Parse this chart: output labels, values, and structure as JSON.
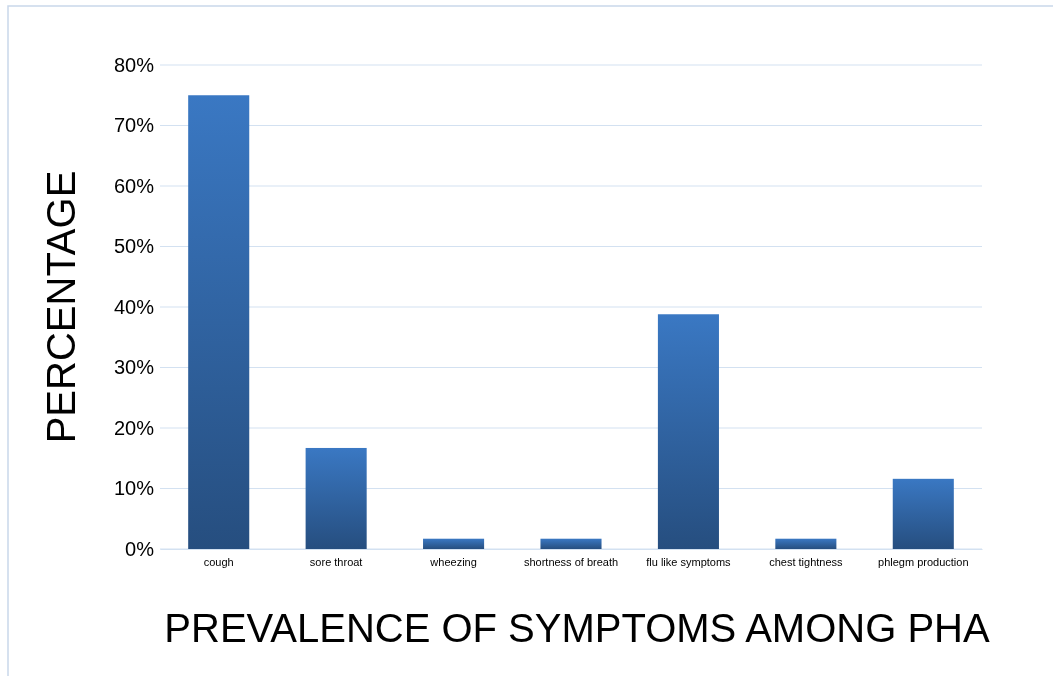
{
  "chart_data": {
    "type": "bar",
    "xlabel": "PREVALENCE OF SYMPTOMS AMONG PHA",
    "ylabel": "PERCENTAGE",
    "categories": [
      "cough",
      "sore throat",
      "wheezing",
      "shortness of breath",
      "flu like symptoms",
      "chest tightness",
      "phlegm production"
    ],
    "values": [
      75,
      16.7,
      1.7,
      1.7,
      38.8,
      1.7,
      11.6
    ],
    "color": "#3a78c3",
    "ylim": [
      0,
      80
    ],
    "yticks": [
      {
        "value": 0,
        "label": "0%"
      },
      {
        "value": 10,
        "label": "10%"
      },
      {
        "value": 20,
        "label": "20%"
      },
      {
        "value": 30,
        "label": "30%"
      },
      {
        "value": 40,
        "label": "40%"
      },
      {
        "value": 50,
        "label": "50%"
      },
      {
        "value": 60,
        "label": "60%"
      },
      {
        "value": 70,
        "label": "70%"
      },
      {
        "value": 80,
        "label": "80%"
      }
    ],
    "grid": "y"
  }
}
